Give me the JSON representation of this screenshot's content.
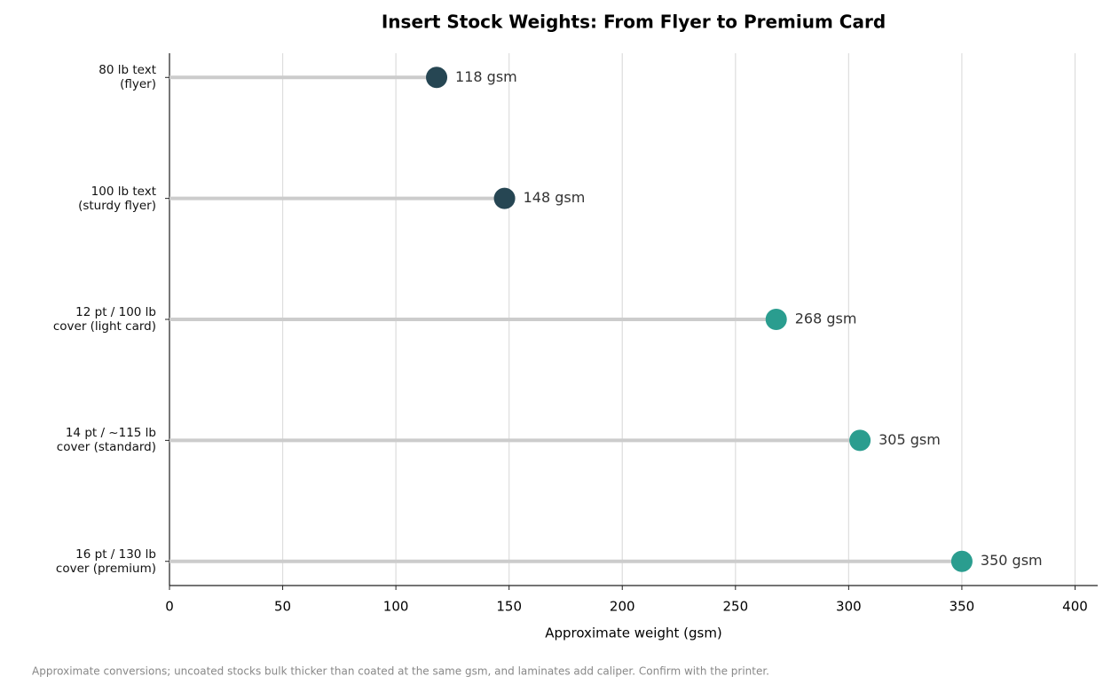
{
  "chart_data": {
    "type": "lollipop",
    "title": "Insert Stock Weights: From Flyer to Premium Card",
    "categories": [
      "80 lb text\n(flyer)",
      "100 lb text\n(sturdy flyer)",
      "12 pt / 100 lb\ncover (light card)",
      "14 pt / ~115 lb\ncover (standard)",
      "16 pt / 130 lb\ncover (premium)"
    ],
    "values": [
      118,
      148,
      268,
      305,
      350
    ],
    "value_labels": [
      "118 gsm",
      "148 gsm",
      "268 gsm",
      "305 gsm",
      "350 gsm"
    ],
    "colors": [
      "#264653",
      "#264653",
      "#2a9d8f",
      "#2a9d8f",
      "#2a9d8f"
    ],
    "stem_color": "#cccccc",
    "xlabel": "Approximate weight (gsm)",
    "xlim": [
      0,
      410
    ],
    "xticks": [
      0,
      50,
      100,
      150,
      200,
      250,
      300,
      350,
      400
    ],
    "grid": true,
    "note": "Approximate conversions; uncoated stocks bulk thicker than coated at the same gsm, and laminates add caliper. Confirm with the printer."
  }
}
